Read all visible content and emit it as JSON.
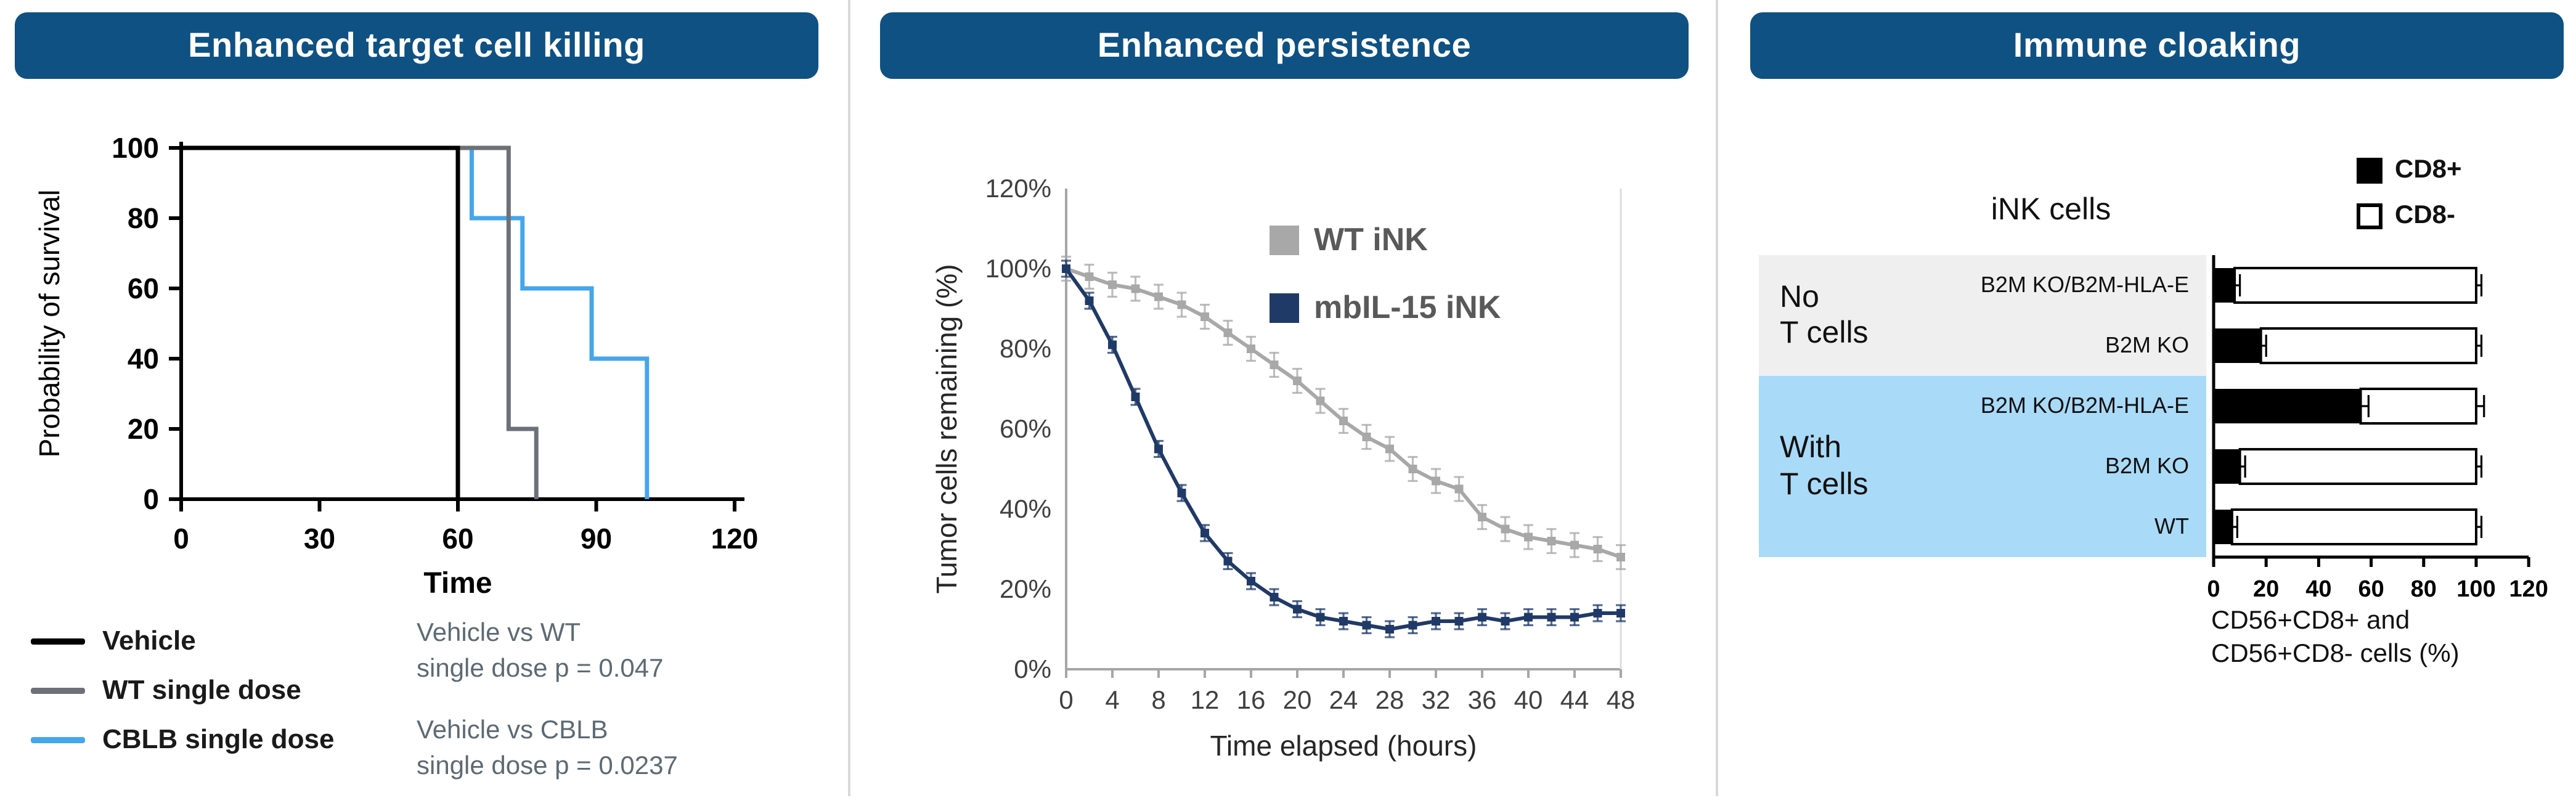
{
  "theme": {
    "background": "#ffffff",
    "header_bg": "#0f5182",
    "header_text": "#ffffff",
    "divider": "#d9d9d9",
    "stats_text": "#5d6a73"
  },
  "headers": {
    "panel1": "Enhanced target cell killing",
    "panel2": "Enhanced persistence",
    "panel3": "Immune cloaking"
  },
  "chart_data": [
    {
      "id": "survival",
      "type": "line",
      "variant": "kaplan-meier-step",
      "xlabel": "Time",
      "ylabel": "Probability of survival",
      "xlim": [
        0,
        120
      ],
      "ylim": [
        0,
        100
      ],
      "xticks": [
        0,
        30,
        60,
        90,
        120
      ],
      "yticks": [
        0,
        20,
        40,
        60,
        80,
        100
      ],
      "series": [
        {
          "name": "Vehicle",
          "color": "#000000",
          "points": [
            [
              0,
              100
            ],
            [
              60,
              100
            ],
            [
              60,
              0
            ]
          ]
        },
        {
          "name": "WT single dose",
          "color": "#6d7177",
          "points": [
            [
              0,
              100
            ],
            [
              71,
              100
            ],
            [
              71,
              20
            ],
            [
              77,
              20
            ],
            [
              77,
              0
            ]
          ]
        },
        {
          "name": "CBLB single dose",
          "color": "#45a6ec",
          "points": [
            [
              0,
              100
            ],
            [
              63,
              100
            ],
            [
              63,
              80
            ],
            [
              74,
              80
            ],
            [
              74,
              60
            ],
            [
              89,
              60
            ],
            [
              89,
              40
            ],
            [
              101,
              40
            ],
            [
              101,
              0
            ]
          ]
        }
      ],
      "annotations": [
        {
          "lines": [
            "Vehicle vs WT",
            "single dose p = 0.047"
          ]
        },
        {
          "lines": [
            "Vehicle vs CBLB",
            "single dose p = 0.0237"
          ]
        }
      ]
    },
    {
      "id": "persistence",
      "type": "line",
      "variant": "markers-with-error-bars",
      "xlabel": "Time elapsed (hours)",
      "ylabel": "Tumor cells remaining (%)",
      "xlim": [
        0,
        48
      ],
      "ylim": [
        0,
        120
      ],
      "xticks": [
        0,
        4,
        8,
        12,
        16,
        20,
        24,
        28,
        32,
        36,
        40,
        44,
        48
      ],
      "yticks": [
        0,
        20,
        40,
        60,
        80,
        100,
        120
      ],
      "ytick_suffix": "%",
      "legend_position": "top-right-inside",
      "x": [
        0,
        2,
        4,
        6,
        8,
        10,
        12,
        14,
        16,
        18,
        20,
        22,
        24,
        26,
        28,
        30,
        32,
        34,
        36,
        38,
        40,
        42,
        44,
        46,
        48
      ],
      "series": [
        {
          "name": "WT iNK",
          "color": "#a8a8a8",
          "err": 3,
          "values": [
            100,
            98,
            96,
            95,
            93,
            91,
            88,
            84,
            80,
            76,
            72,
            67,
            62,
            58,
            55,
            50,
            47,
            45,
            38,
            35,
            33,
            32,
            31,
            30,
            28
          ]
        },
        {
          "name": "mbIL-15 iNK",
          "color": "#203a68",
          "err": 2,
          "values": [
            100,
            92,
            81,
            68,
            55,
            44,
            34,
            27,
            22,
            18,
            15,
            13,
            12,
            11,
            10,
            11,
            12,
            12,
            13,
            12,
            13,
            13,
            13,
            14,
            14
          ]
        }
      ]
    },
    {
      "id": "cloaking",
      "type": "bar",
      "orientation": "horizontal",
      "stacked": true,
      "title": "iNK cells",
      "xlabel": "CD56+CD8+ and CD56+CD8- cells (%)",
      "xlabel_lines": [
        "CD56+CD8+ and",
        "CD56+CD8- cells (%)"
      ],
      "xlim": [
        0,
        120
      ],
      "xticks": [
        0,
        20,
        40,
        60,
        80,
        100,
        120
      ],
      "series": [
        {
          "name": "CD8+",
          "color": "#000000"
        },
        {
          "name": "CD8-",
          "color": "#ffffff"
        }
      ],
      "groups": [
        {
          "lines": [
            "No",
            "T cells"
          ],
          "bg": "#efefef",
          "rows": [
            {
              "label": "B2M KO/B2M-HLA-E",
              "values": [
                8,
                92
              ],
              "err": 2
            },
            {
              "label": "B2M KO",
              "values": [
                18,
                82
              ],
              "err": 2
            }
          ]
        },
        {
          "lines": [
            "With",
            "T cells"
          ],
          "bg": "#a9daf8",
          "rows": [
            {
              "label": "B2M KO/B2M-HLA-E",
              "values": [
                56,
                44
              ],
              "err": 3
            },
            {
              "label": "B2M KO",
              "values": [
                10,
                90
              ],
              "err": 2
            },
            {
              "label": "WT",
              "values": [
                7,
                93
              ],
              "err": 2
            }
          ]
        }
      ]
    }
  ]
}
